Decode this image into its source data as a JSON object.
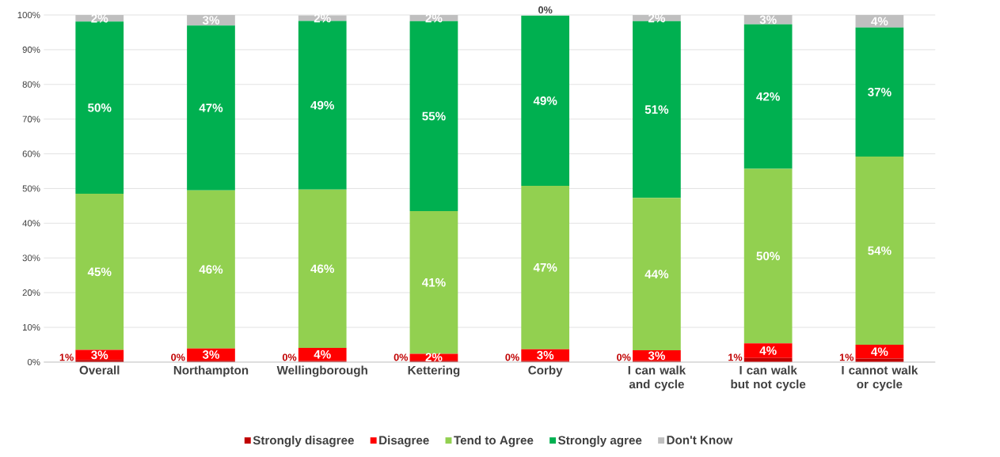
{
  "chart_data": {
    "type": "bar",
    "stacked": true,
    "categories": [
      "Overall",
      "Northampton",
      "Wellingborough",
      "Kettering",
      "Corby",
      "I can walk and cycle",
      "I can walk but not cycle",
      "I cannot walk or cycle"
    ],
    "series": [
      {
        "name": "Strongly disagree",
        "color": "#c00000",
        "values": [
          0.6,
          0.4,
          0.3,
          0.4,
          0.3,
          0.3,
          1.2,
          1.0
        ],
        "value_labels": [
          "1%",
          "0%",
          "0%",
          "0%",
          "0%",
          "0%",
          "1%",
          "1%"
        ]
      },
      {
        "name": "Disagree",
        "color": "#ff0000",
        "values": [
          2.9,
          3.5,
          3.8,
          2.0,
          3.4,
          3.1,
          4.2,
          4.0
        ],
        "value_labels": [
          "3%",
          "3%",
          "4%",
          "2%",
          "3%",
          "3%",
          "4%",
          "4%"
        ]
      },
      {
        "name": "Tend to Agree",
        "color": "#92d050",
        "values": [
          45.0,
          45.6,
          45.6,
          41.1,
          47.1,
          43.9,
          50.3,
          54.2
        ],
        "value_labels": [
          "45%",
          "46%",
          "46%",
          "41%",
          "47%",
          "44%",
          "50%",
          "54%"
        ]
      },
      {
        "name": "Strongly agree",
        "color": "#00b050",
        "values": [
          49.6,
          47.5,
          48.6,
          54.7,
          49.0,
          50.9,
          41.6,
          37.2
        ],
        "value_labels": [
          "50%",
          "47%",
          "49%",
          "55%",
          "49%",
          "51%",
          "42%",
          "37%"
        ]
      },
      {
        "name": "Don't Know",
        "color": "#bfbfbf",
        "values": [
          1.9,
          3.0,
          1.6,
          1.8,
          0.0,
          1.8,
          2.7,
          3.6
        ],
        "value_labels": [
          "2%",
          "3%",
          "2%",
          "2%",
          "0%",
          "2%",
          "3%",
          "4%"
        ]
      }
    ],
    "ylim": [
      0,
      100
    ],
    "yticks": [
      {
        "value": 0,
        "label": "0%"
      },
      {
        "value": 10,
        "label": "10%"
      },
      {
        "value": 20,
        "label": "20%"
      },
      {
        "value": 30,
        "label": "30%"
      },
      {
        "value": 40,
        "label": "40%"
      },
      {
        "value": 50,
        "label": "50%"
      },
      {
        "value": 60,
        "label": "60%"
      },
      {
        "value": 70,
        "label": "70%"
      },
      {
        "value": 80,
        "label": "80%"
      },
      {
        "value": 90,
        "label": "90%"
      },
      {
        "value": 100,
        "label": "100%"
      }
    ],
    "grid": "y",
    "legend": "bottom"
  }
}
